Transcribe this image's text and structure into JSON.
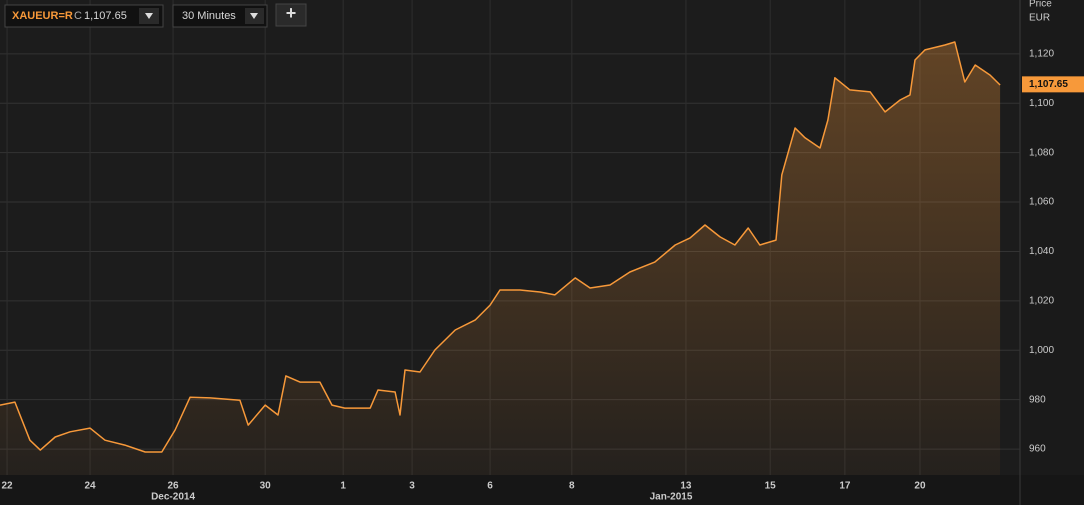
{
  "toolbar": {
    "symbol": "XAUEUR=R",
    "close_prefix": "C",
    "interval": "30 Minutes",
    "add_button": "+"
  },
  "chart_data": {
    "type": "line",
    "y_axis_title": "Price",
    "y_axis_unit": "EUR",
    "last_price": {
      "value": 1107.65,
      "label": "1,107.65"
    },
    "x": [
      -0.17,
      0.19,
      0.55,
      0.8,
      1.16,
      1.52,
      2,
      2.36,
      2.84,
      3.33,
      3.73,
      4.05,
      4.41,
      4.89,
      5.61,
      5.81,
      6.22,
      6.53,
      6.72,
      7.06,
      7.54,
      7.83,
      8.14,
      8.75,
      8.94,
      9.35,
      9.47,
      9.59,
      9.95,
      10.31,
      10.8,
      11.28,
      11.64,
      11.88,
      12.36,
      12.84,
      13.2,
      13.69,
      14.05,
      14.53,
      15.01,
      15.61,
      16.1,
      16.46,
      16.82,
      17.18,
      17.54,
      17.86,
      18.14,
      18.53,
      18.67,
      18.99,
      19.23,
      19.59,
      19.78,
      19.95,
      20.31,
      20.8,
      21.16,
      21.52,
      21.76,
      21.88,
      22.12,
      22.6,
      22.84,
      23.08,
      23.33,
      23.69,
      23.93
    ],
    "series": [
      {
        "name": "XAUEUR=R",
        "color": "#f7993a",
        "values": [
          977.8,
          979,
          963.6,
          959.6,
          964.9,
          967,
          968.5,
          963.6,
          961.6,
          958.8,
          958.8,
          967.7,
          981,
          980.7,
          979.8,
          969.7,
          977.8,
          973.8,
          989.6,
          987.1,
          987.1,
          977.8,
          976.6,
          976.6,
          983.9,
          983.1,
          973.8,
          992,
          991.2,
          1000.1,
          1008.2,
          1012.2,
          1018.3,
          1024.4,
          1024.4,
          1023.6,
          1022.4,
          1029.3,
          1025.2,
          1026.4,
          1031.7,
          1035.7,
          1042.6,
          1045.5,
          1050.7,
          1045.9,
          1042.6,
          1049.5,
          1042.6,
          1044.6,
          1071,
          1090,
          1086,
          1081.9,
          1093.2,
          1110.3,
          1105.4,
          1104.6,
          1096.5,
          1101.3,
          1103.4,
          1117.5,
          1121.6,
          1123.6,
          1124.8,
          1108.6,
          1115.5,
          1111.4,
          1107.4
        ]
      }
    ],
    "xlim": [
      -0.17,
      24.41
    ],
    "xticks": [
      {
        "value": 0,
        "label": "22"
      },
      {
        "value": 2,
        "label": "24"
      },
      {
        "value": 4,
        "label": "26"
      },
      {
        "value": 6.22,
        "label": "30"
      },
      {
        "value": 8.1,
        "label": "1"
      },
      {
        "value": 9.76,
        "label": "3"
      },
      {
        "value": 11.64,
        "label": "6"
      },
      {
        "value": 13.61,
        "label": "8"
      },
      {
        "value": 16.36,
        "label": "13"
      },
      {
        "value": 18.39,
        "label": "15"
      },
      {
        "value": 20.19,
        "label": "17"
      },
      {
        "value": 22,
        "label": "20"
      }
    ],
    "period_labels": [
      {
        "value": 4,
        "label": "Dec-2014"
      },
      {
        "value": 16,
        "label": "Jan-2015"
      }
    ],
    "ylim": [
      949.5,
      1141.8
    ],
    "yticks": [
      960,
      980,
      {
        "value": 1000,
        "label": "1,000"
      },
      {
        "value": 1020,
        "label": "1,020"
      },
      {
        "value": 1040,
        "label": "1,040"
      },
      {
        "value": 1060,
        "label": "1,060"
      },
      {
        "value": 1080,
        "label": "1,080"
      },
      {
        "value": 1100,
        "label": "1,100"
      },
      {
        "value": 1120,
        "label": "1,120"
      }
    ],
    "grid": true
  }
}
